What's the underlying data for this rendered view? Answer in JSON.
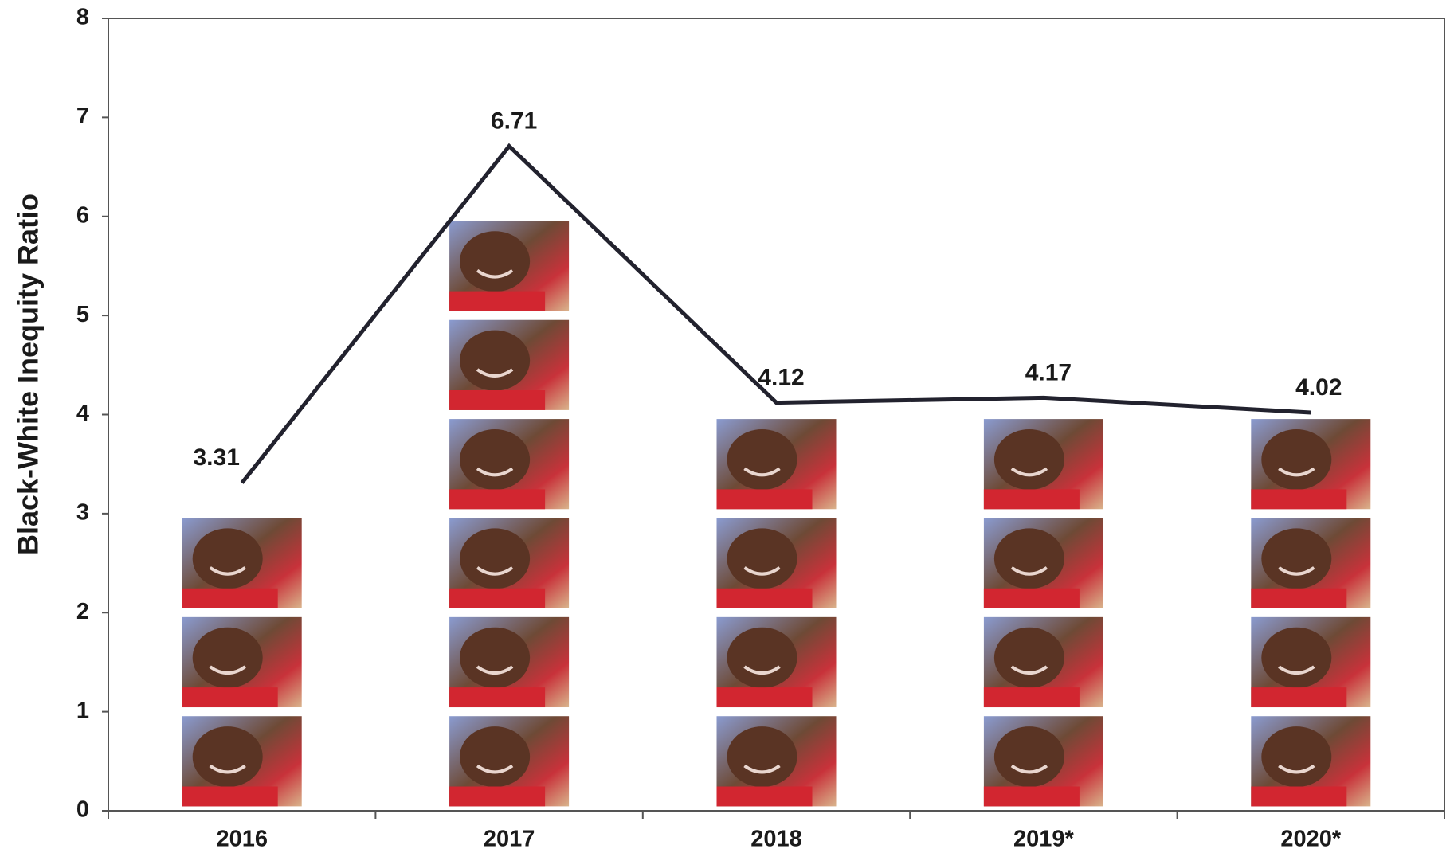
{
  "chart_data": {
    "type": "line",
    "y_label": "Black-White Inequity Ratio",
    "categories": [
      "2016",
      "2017",
      "2018",
      "2019*",
      "2020*"
    ],
    "series": [
      {
        "name": "Black-White Inequity Ratio",
        "color": "#22222e",
        "values": [
          3.31,
          6.71,
          4.12,
          4.17,
          4.02
        ]
      }
    ],
    "ylim": [
      0,
      8
    ],
    "yticks": [
      0,
      1,
      2,
      3,
      4,
      5,
      6,
      7,
      8
    ],
    "grid": false
  }
}
